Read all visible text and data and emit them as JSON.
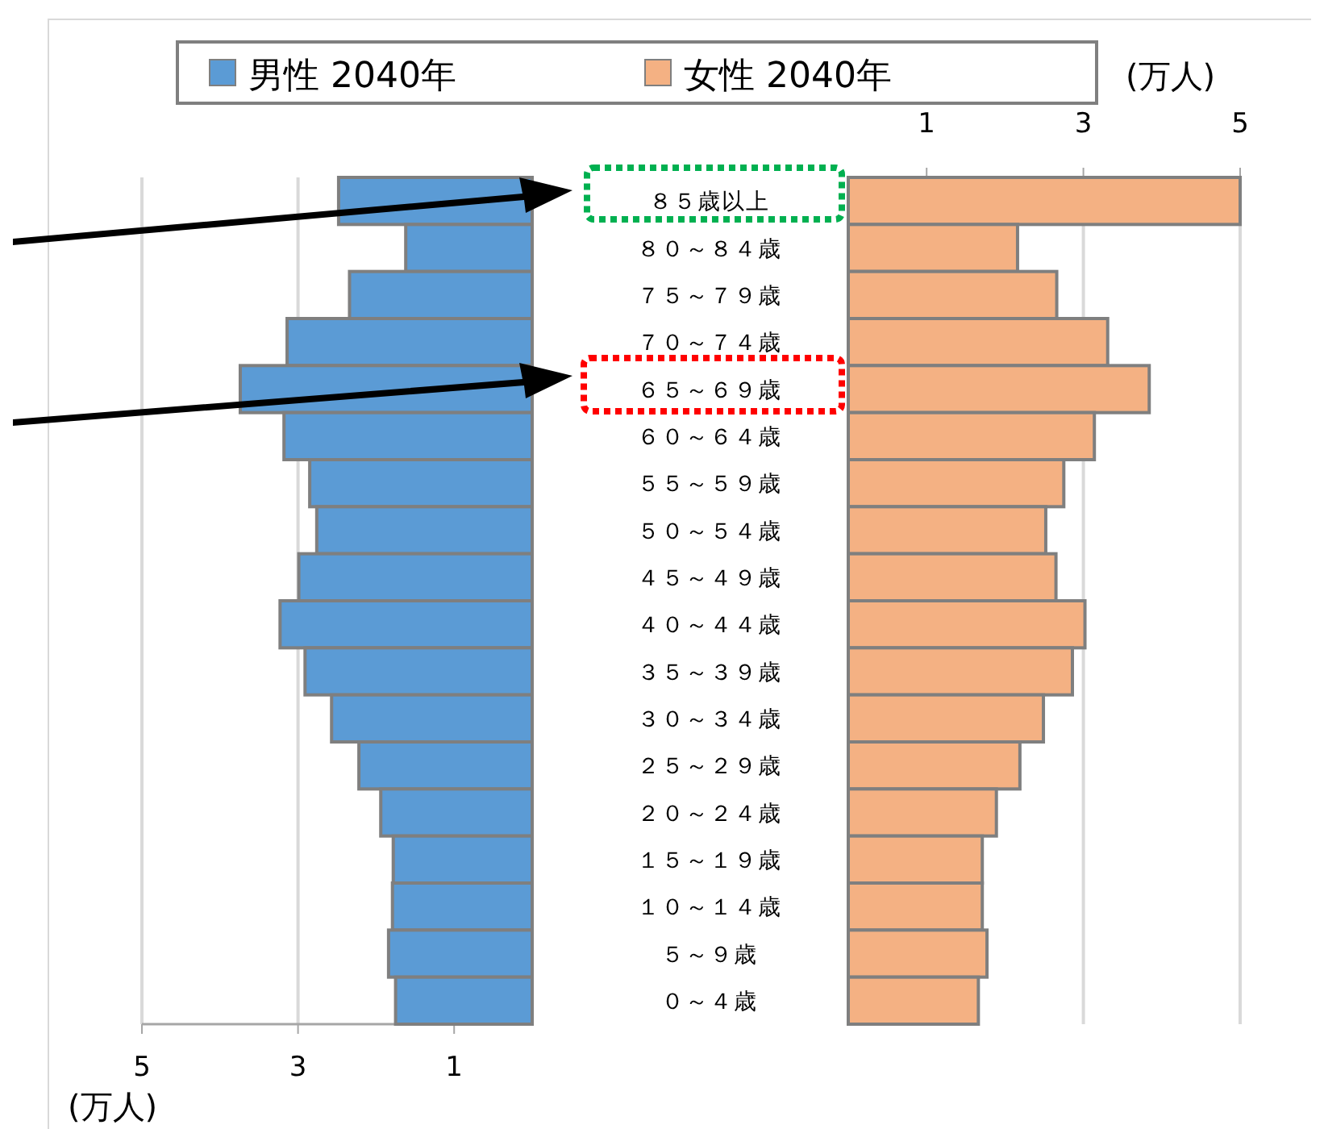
{
  "chart_data": [
    {
      "type": "bar",
      "orientation": "horizontal",
      "categories": [
        "８５歳以上",
        "８０～８４歳",
        "７５～７９歳",
        "７０～７４歳",
        "６５～６９歳",
        "６０～６４歳",
        "５５～５９歳",
        "５０～５４歳",
        "４５～４９歳",
        "４０～４４歳",
        "３５～３９歳",
        "３０～３４歳",
        "２５～２９歳",
        "２０～２４歳",
        "１５～１９歳",
        "１０～１４歳",
        "５～９歳",
        "０～４歳"
      ],
      "series": [
        {
          "name": "男性 2040年",
          "color": "#5b9bd5",
          "values": [
            2.48,
            1.62,
            2.34,
            3.14,
            3.74,
            3.18,
            2.85,
            2.76,
            2.99,
            3.23,
            2.91,
            2.57,
            2.22,
            1.94,
            1.78,
            1.79,
            1.84,
            1.75
          ]
        }
      ],
      "xlim": [
        5,
        0
      ],
      "xticks": [
        5,
        3,
        {
          "value": 1,
          "label": "1"
        }
      ],
      "xlabel": "(万人)",
      "grid": "x",
      "legend": "top"
    },
    {
      "type": "bar",
      "orientation": "horizontal",
      "categories": [
        null,
        null,
        null,
        null,
        null,
        null,
        null,
        null,
        null,
        null,
        null,
        null,
        null,
        null,
        null,
        null,
        null,
        null
      ],
      "series": [
        {
          "name": "女性 2040年",
          "color": "#f4b183",
          "values": [
            5.0,
            2.16,
            2.66,
            3.31,
            3.84,
            3.14,
            2.75,
            2.52,
            2.65,
            3.02,
            2.86,
            2.49,
            2.19,
            1.89,
            1.71,
            1.71,
            1.77,
            1.66
          ]
        }
      ],
      "xlim": [
        0,
        5
      ],
      "xticks": [
        1,
        3,
        5
      ],
      "xlabel": "(万人)",
      "grid": "x",
      "legend": "top",
      "tick_labels": "x"
    }
  ]
}
